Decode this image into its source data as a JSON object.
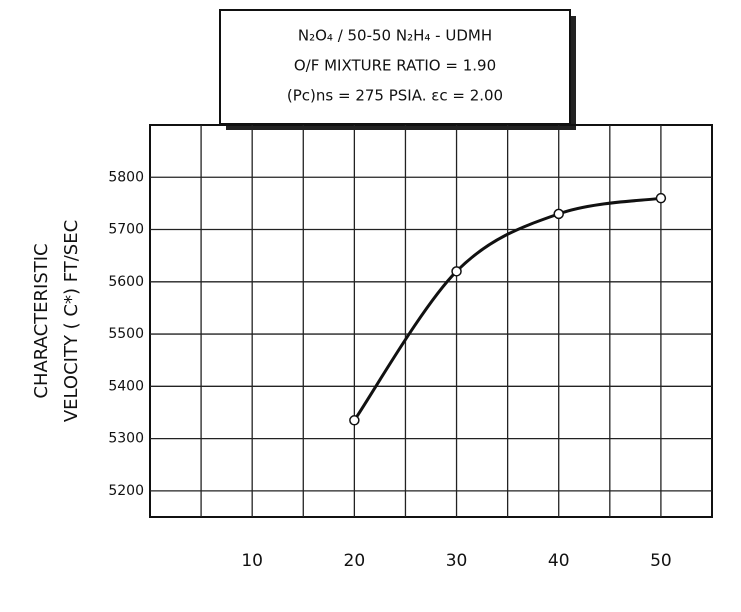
{
  "chart_data": {
    "type": "line",
    "title_lines": [
      "N₂O₄ / 50-50 N₂H₄ - UDMH",
      "O/F MIXTURE RATIO = 1.90",
      "(Pc)ns = 275 PSIA.  εc = 2.00"
    ],
    "y_label_lines": [
      "CHARACTERISTIC",
      "VELOCITY ( C*)  FT/SEC"
    ],
    "x": [
      20,
      30,
      40,
      50
    ],
    "series": [
      {
        "values": [
          5335,
          5620,
          5730,
          5760
        ],
        "color": "#111"
      }
    ],
    "xlim": [
      0,
      55
    ],
    "xticks": [
      10,
      20,
      30,
      40,
      50
    ],
    "ylim": [
      5150,
      5900
    ],
    "yticks": [
      5200,
      5300,
      5400,
      5500,
      5600,
      5700,
      5800
    ],
    "grid": true,
    "x_grid_step": 5,
    "smooth": true
  }
}
